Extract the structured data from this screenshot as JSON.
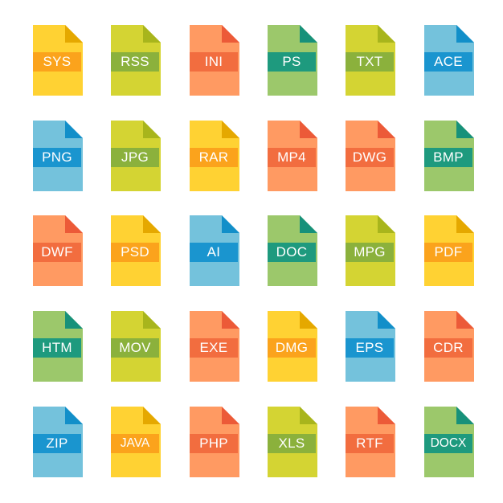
{
  "palette": {
    "yellow": {
      "body": "#FFD233",
      "fold": "#E5A800",
      "band": "#FBA31C"
    },
    "lime": {
      "body": "#D4D433",
      "fold": "#A8B51C",
      "band": "#8BB13C"
    },
    "orange": {
      "body": "#FF9A62",
      "fold": "#EC5A38",
      "band": "#F26D3F"
    },
    "green": {
      "body": "#9CC86B",
      "fold": "#17917A",
      "band": "#1E9A7E"
    },
    "blue": {
      "body": "#74C2DC",
      "fold": "#128FC9",
      "band": "#1A95CF"
    }
  },
  "icons": [
    {
      "label": "SYS",
      "color": "yellow"
    },
    {
      "label": "RSS",
      "color": "lime"
    },
    {
      "label": "INI",
      "color": "orange"
    },
    {
      "label": "PS",
      "color": "green"
    },
    {
      "label": "TXT",
      "color": "lime"
    },
    {
      "label": "ACE",
      "color": "blue"
    },
    {
      "label": "PNG",
      "color": "blue"
    },
    {
      "label": "JPG",
      "color": "lime"
    },
    {
      "label": "RAR",
      "color": "yellow"
    },
    {
      "label": "MP4",
      "color": "orange"
    },
    {
      "label": "DWG",
      "color": "orange"
    },
    {
      "label": "BMP",
      "color": "green"
    },
    {
      "label": "DWF",
      "color": "orange"
    },
    {
      "label": "PSD",
      "color": "yellow"
    },
    {
      "label": "AI",
      "color": "blue"
    },
    {
      "label": "DOC",
      "color": "green"
    },
    {
      "label": "MPG",
      "color": "lime"
    },
    {
      "label": "PDF",
      "color": "yellow"
    },
    {
      "label": "HTM",
      "color": "green"
    },
    {
      "label": "MOV",
      "color": "lime"
    },
    {
      "label": "EXE",
      "color": "orange"
    },
    {
      "label": "DMG",
      "color": "yellow"
    },
    {
      "label": "EPS",
      "color": "blue"
    },
    {
      "label": "CDR",
      "color": "orange"
    },
    {
      "label": "ZIP",
      "color": "blue"
    },
    {
      "label": "JAVA",
      "color": "yellow"
    },
    {
      "label": "PHP",
      "color": "orange"
    },
    {
      "label": "XLS",
      "color": "lime"
    },
    {
      "label": "RTF",
      "color": "orange"
    },
    {
      "label": "DOCX",
      "color": "green"
    }
  ]
}
